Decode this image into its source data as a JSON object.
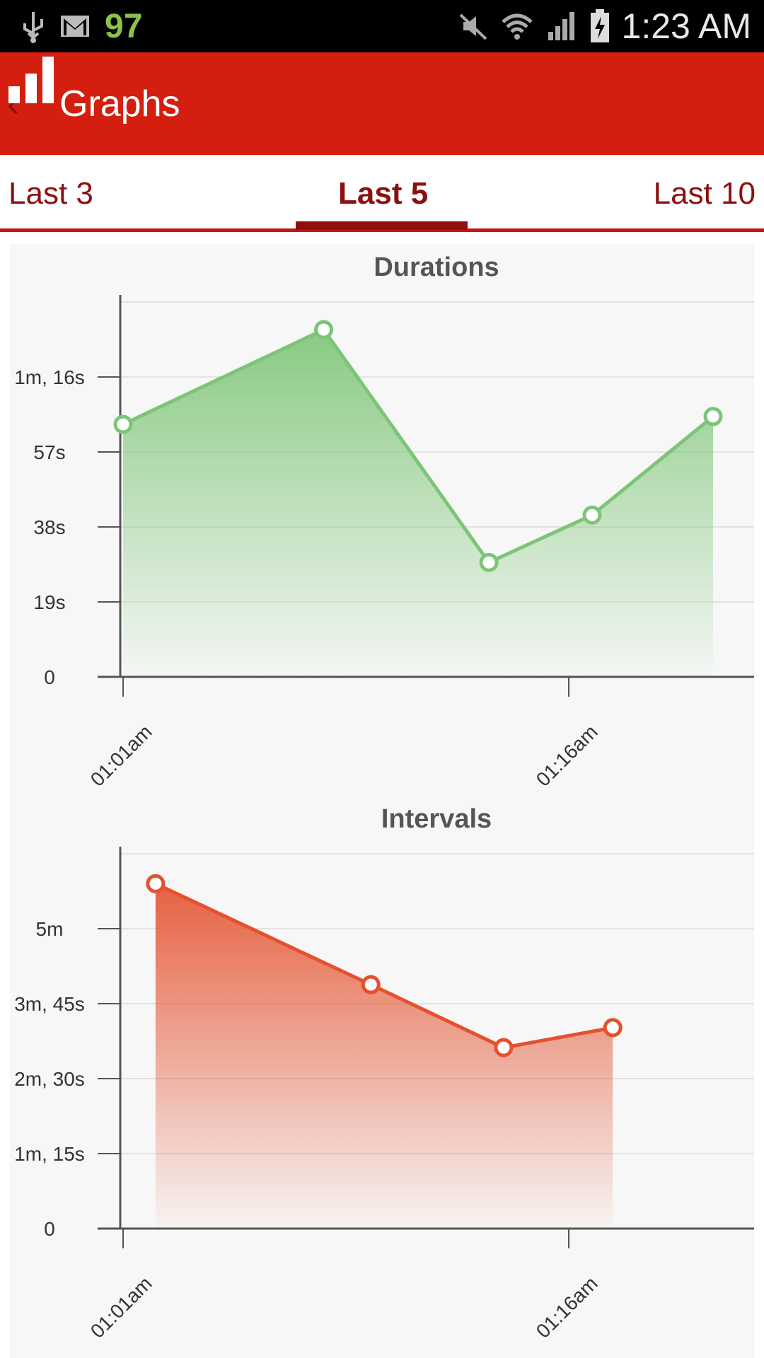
{
  "status_bar": {
    "battery_level": "97",
    "clock": "1:23 AM",
    "icons": [
      "usb-icon",
      "gmail-icon",
      "mute-icon",
      "wifi-icon",
      "signal-icon",
      "battery-charging-icon"
    ]
  },
  "app_bar": {
    "title": "Graphs",
    "back_icon": "chevron-left-icon",
    "app_icon": "bar-chart-icon",
    "color": "#d41f10"
  },
  "tabs": [
    {
      "label": "Last 3",
      "active": false
    },
    {
      "label": "Last 5",
      "active": true
    },
    {
      "label": "Last 10",
      "active": false
    }
  ],
  "chart_data": [
    {
      "type": "area",
      "title": "Durations",
      "color": "#7cc576",
      "y_ticks": [
        "0",
        "19s",
        "38s",
        "57s",
        "1m, 16s"
      ],
      "y_values": [
        0,
        19,
        38,
        57,
        76
      ],
      "ylim": [
        0,
        95
      ],
      "x_ticks": [
        "01:01am",
        "01:16am"
      ],
      "points": [
        {
          "x": 0,
          "y": 64
        },
        {
          "x": 0.34,
          "y": 88
        },
        {
          "x": 0.62,
          "y": 29
        },
        {
          "x": 0.795,
          "y": 41
        },
        {
          "x": 1.0,
          "y": 66
        }
      ]
    },
    {
      "type": "area",
      "title": "Intervals",
      "color": "#e4512e",
      "y_ticks": [
        "0",
        "1m, 15s",
        "2m, 30s",
        "3m, 45s",
        "5m"
      ],
      "y_values": [
        0,
        75,
        150,
        225,
        300
      ],
      "ylim": [
        0,
        375
      ],
      "x_ticks": [
        "01:01am",
        "01:16am"
      ],
      "points": [
        {
          "x": 0.055,
          "y": 345
        },
        {
          "x": 0.42,
          "y": 244
        },
        {
          "x": 0.645,
          "y": 181
        },
        {
          "x": 0.83,
          "y": 201
        }
      ]
    }
  ]
}
